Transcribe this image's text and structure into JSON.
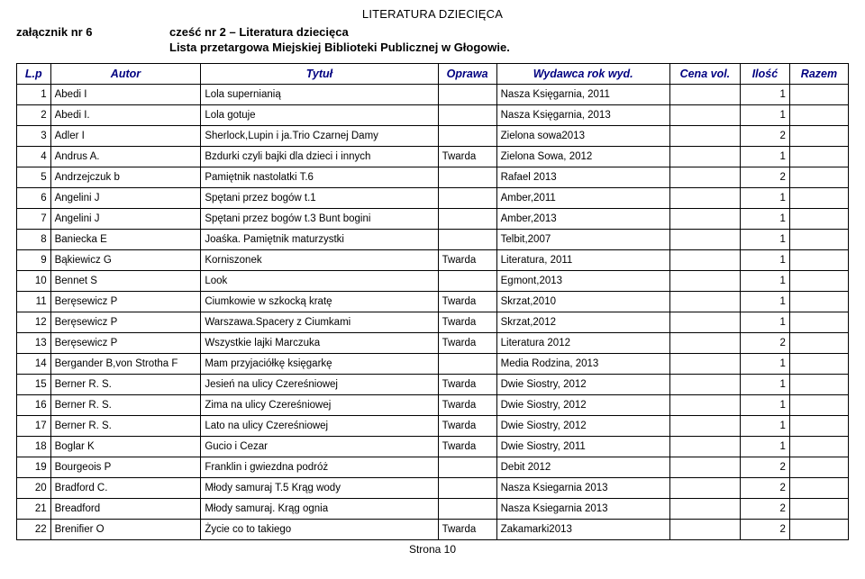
{
  "page_title": "LITERATURA DZIECIĘCA",
  "attachment": "załącznik nr 6",
  "subtitle": "cześć nr 2 – Literatura dziecięca",
  "tender_line": "Lista przetargowa Miejskiej Biblioteki Publicznej w Głogowie.",
  "columns": {
    "lp": "L.p",
    "autor": "Autor",
    "tytul": "Tytuł",
    "oprawa": "Oprawa",
    "wydawca": "Wydawca rok wyd.",
    "cena": "Cena vol.",
    "ilosc": "Ilość",
    "razem": "Razem"
  },
  "rows": [
    {
      "lp": "1",
      "autor": "Abedi I",
      "tytul": "Lola supernianią",
      "oprawa": "",
      "wydawca": "Nasza Księgarnia, 2011",
      "cena": "",
      "ilosc": "1",
      "razem": ""
    },
    {
      "lp": "2",
      "autor": "Abedi I.",
      "tytul": "Lola gotuje",
      "oprawa": "",
      "wydawca": "Nasza Księgarnia, 2013",
      "cena": "",
      "ilosc": "1",
      "razem": ""
    },
    {
      "lp": "3",
      "autor": "Adler I",
      "tytul": "Sherlock,Lupin i ja.Trio Czarnej Damy",
      "oprawa": "",
      "wydawca": "Zielona sowa2013",
      "cena": "",
      "ilosc": "2",
      "razem": ""
    },
    {
      "lp": "4",
      "autor": "Andrus A.",
      "tytul": "Bzdurki czyli bajki dla dzieci i innych",
      "oprawa": "Twarda",
      "wydawca": "Zielona Sowa, 2012",
      "cena": "",
      "ilosc": "1",
      "razem": ""
    },
    {
      "lp": "5",
      "autor": "Andrzejczuk b",
      "tytul": "Pamiętnik nastolatki T.6",
      "oprawa": "",
      "wydawca": "Rafael 2013",
      "cena": "",
      "ilosc": "2",
      "razem": ""
    },
    {
      "lp": "6",
      "autor": "Angelini J",
      "tytul": "Spętani przez bogów t.1",
      "oprawa": "",
      "wydawca": "Amber,2011",
      "cena": "",
      "ilosc": "1",
      "razem": ""
    },
    {
      "lp": "7",
      "autor": "Angelini J",
      "tytul": "Spętani przez bogów t.3 Bunt bogini",
      "oprawa": "",
      "wydawca": "Amber,2013",
      "cena": "",
      "ilosc": "1",
      "razem": ""
    },
    {
      "lp": "8",
      "autor": "Baniecka E",
      "tytul": "Joaśka. Pamiętnik maturzystki",
      "oprawa": "",
      "wydawca": "Telbit,2007",
      "cena": "",
      "ilosc": "1",
      "razem": ""
    },
    {
      "lp": "9",
      "autor": "Bąkiewicz G",
      "tytul": "Korniszonek",
      "oprawa": "Twarda",
      "wydawca": "Literatura, 2011",
      "cena": "",
      "ilosc": "1",
      "razem": ""
    },
    {
      "lp": "10",
      "autor": "Bennet S",
      "tytul": "Look",
      "oprawa": "",
      "wydawca": "Egmont,2013",
      "cena": "",
      "ilosc": "1",
      "razem": ""
    },
    {
      "lp": "11",
      "autor": "Beręsewicz P",
      "tytul": "Ciumkowie w szkocką kratę",
      "oprawa": "Twarda",
      "wydawca": "Skrzat,2010",
      "cena": "",
      "ilosc": "1",
      "razem": ""
    },
    {
      "lp": "12",
      "autor": "Beręsewicz P",
      "tytul": "Warszawa.Spacery z Ciumkami",
      "oprawa": "Twarda",
      "wydawca": "Skrzat,2012",
      "cena": "",
      "ilosc": "1",
      "razem": ""
    },
    {
      "lp": "13",
      "autor": "Beręsewicz P",
      "tytul": "Wszystkie lajki Marczuka",
      "oprawa": "Twarda",
      "wydawca": "Literatura 2012",
      "cena": "",
      "ilosc": "2",
      "razem": ""
    },
    {
      "lp": "14",
      "autor": "Bergander B,von Strotha F",
      "tytul": "Mam przyjaciółkę księgarkę",
      "oprawa": "",
      "wydawca": "Media Rodzina, 2013",
      "cena": "",
      "ilosc": "1",
      "razem": ""
    },
    {
      "lp": "15",
      "autor": "Berner R. S.",
      "tytul": "Jesień na ulicy Czereśniowej",
      "oprawa": "Twarda",
      "wydawca": "Dwie Siostry, 2012",
      "cena": "",
      "ilosc": "1",
      "razem": ""
    },
    {
      "lp": "16",
      "autor": "Berner R. S.",
      "tytul": "Zima na ulicy Czereśniowej",
      "oprawa": "Twarda",
      "wydawca": "Dwie Siostry, 2012",
      "cena": "",
      "ilosc": "1",
      "razem": ""
    },
    {
      "lp": "17",
      "autor": "Berner R. S.",
      "tytul": "Lato na ulicy Czereśniowej",
      "oprawa": "Twarda",
      "wydawca": "Dwie Siostry, 2012",
      "cena": "",
      "ilosc": "1",
      "razem": ""
    },
    {
      "lp": "18",
      "autor": "Boglar K",
      "tytul": "Gucio i Cezar",
      "oprawa": "Twarda",
      "wydawca": "Dwie Siostry, 2011",
      "cena": "",
      "ilosc": "1",
      "razem": ""
    },
    {
      "lp": "19",
      "autor": "Bourgeois P",
      "tytul": "Franklin i gwiezdna podróż",
      "oprawa": "",
      "wydawca": "Debit 2012",
      "cena": "",
      "ilosc": "2",
      "razem": ""
    },
    {
      "lp": "20",
      "autor": "Bradford C.",
      "tytul": "Młody samuraj T.5 Krąg wody",
      "oprawa": "",
      "wydawca": "Nasza Ksiegarnia 2013",
      "cena": "",
      "ilosc": "2",
      "razem": ""
    },
    {
      "lp": "21",
      "autor": "Breadford",
      "tytul": "Młody samuraj. Krąg ognia",
      "oprawa": "",
      "wydawca": "Nasza Ksiegarnia 2013",
      "cena": "",
      "ilosc": "2",
      "razem": ""
    },
    {
      "lp": "22",
      "autor": "Brenifier O",
      "tytul": "Życie co to takiego",
      "oprawa": "Twarda",
      "wydawca": "Zakamarki2013",
      "cena": "",
      "ilosc": "2",
      "razem": ""
    }
  ],
  "footer": "Strona 10"
}
